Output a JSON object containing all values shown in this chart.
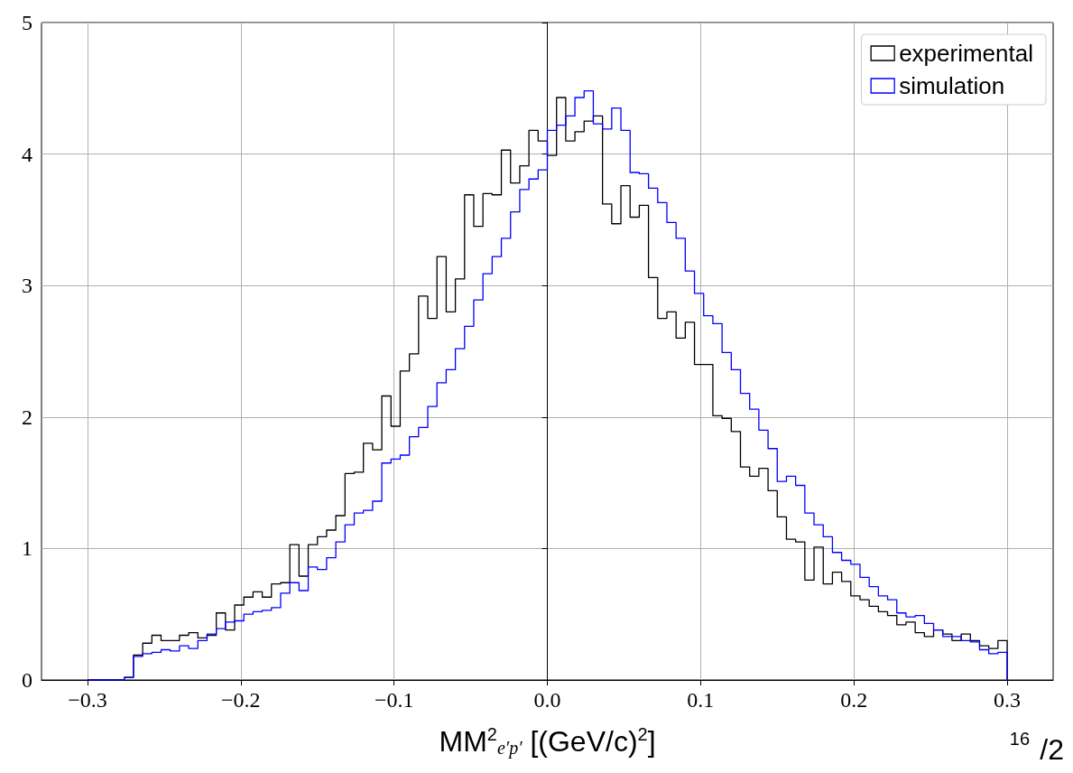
{
  "chart_data": {
    "type": "histogram",
    "xlabel": "MM$^{2}$$_{e′p′}$ [(GeV/c)$^{2}$]",
    "bins": [
      -0.3,
      -0.294,
      -0.288,
      -0.282,
      -0.276,
      -0.27,
      -0.264,
      -0.258,
      -0.252,
      -0.246,
      -0.24,
      -0.234,
      -0.228,
      -0.222,
      -0.216,
      -0.21,
      -0.204,
      -0.198,
      -0.192,
      -0.186,
      -0.18,
      -0.174,
      -0.168,
      -0.162,
      -0.156,
      -0.15,
      -0.144,
      -0.138,
      -0.132,
      -0.126,
      -0.12,
      -0.114,
      -0.108,
      -0.102,
      -0.096,
      -0.09,
      -0.084,
      -0.078,
      -0.072,
      -0.066,
      -0.06,
      -0.054,
      -0.048,
      -0.042,
      -0.036,
      -0.03,
      -0.024,
      -0.018,
      -0.012,
      -0.006,
      0,
      0.006,
      0.012,
      0.018,
      0.024,
      0.03,
      0.036,
      0.042,
      0.048,
      0.054,
      0.06,
      0.066,
      0.072,
      0.078,
      0.084,
      0.09,
      0.096,
      0.102,
      0.108,
      0.114,
      0.12,
      0.126,
      0.132,
      0.138,
      0.144,
      0.15,
      0.156,
      0.162,
      0.168,
      0.174,
      0.18,
      0.186,
      0.192,
      0.198,
      0.204,
      0.21,
      0.216,
      0.222,
      0.228,
      0.234,
      0.24,
      0.246,
      0.252,
      0.258,
      0.264,
      0.27,
      0.276,
      0.282,
      0.288,
      0.294,
      0.3
    ],
    "series": [
      {
        "name": "experimental",
        "color": "#000000",
        "values": [
          0,
          0,
          0,
          0,
          0.02,
          0.19,
          0.28,
          0.34,
          0.3,
          0.3,
          0.34,
          0.36,
          0.32,
          0.34,
          0.51,
          0.38,
          0.57,
          0.63,
          0.67,
          0.63,
          0.73,
          0.74,
          1.03,
          0.79,
          1.03,
          1.09,
          1.14,
          1.25,
          1.57,
          1.58,
          1.8,
          1.75,
          2.16,
          1.93,
          2.35,
          2.48,
          2.92,
          2.75,
          3.22,
          2.8,
          3.05,
          3.69,
          3.45,
          3.7,
          3.69,
          4.03,
          3.78,
          3.91,
          4.18,
          4.1,
          3.99,
          4.43,
          4.1,
          4.17,
          4.25,
          4.29,
          3.62,
          3.47,
          3.76,
          3.52,
          3.61,
          3.06,
          2.75,
          2.8,
          2.6,
          2.72,
          2.4,
          2.4,
          2.01,
          1.99,
          1.89,
          1.62,
          1.55,
          1.61,
          1.44,
          1.24,
          1.07,
          1.05,
          0.76,
          1.01,
          0.73,
          0.82,
          0.75,
          0.64,
          0.61,
          0.56,
          0.52,
          0.49,
          0.42,
          0.44,
          0.36,
          0.33,
          0.38,
          0.35,
          0.3,
          0.35,
          0.3,
          0.26,
          0.24,
          0.3
        ]
      },
      {
        "name": "simulation",
        "color": "#0000ff",
        "values": [
          0,
          0,
          0,
          0,
          0.02,
          0.18,
          0.2,
          0.21,
          0.23,
          0.22,
          0.26,
          0.24,
          0.3,
          0.35,
          0.39,
          0.44,
          0.45,
          0.5,
          0.52,
          0.53,
          0.55,
          0.66,
          0.74,
          0.68,
          0.86,
          0.84,
          0.93,
          1.05,
          1.18,
          1.27,
          1.29,
          1.36,
          1.65,
          1.68,
          1.71,
          1.85,
          1.92,
          2.08,
          2.26,
          2.36,
          2.52,
          2.69,
          2.89,
          3.09,
          3.22,
          3.36,
          3.56,
          3.73,
          3.81,
          3.88,
          4.18,
          4.22,
          4.29,
          4.43,
          4.48,
          4.23,
          4.19,
          4.35,
          4.18,
          3.86,
          3.85,
          3.74,
          3.63,
          3.48,
          3.36,
          3.11,
          2.94,
          2.77,
          2.71,
          2.49,
          2.36,
          2.18,
          2.06,
          1.9,
          1.76,
          1.51,
          1.55,
          1.48,
          1.27,
          1.18,
          1.09,
          0.97,
          0.91,
          0.88,
          0.78,
          0.71,
          0.64,
          0.61,
          0.51,
          0.48,
          0.49,
          0.43,
          0.38,
          0.33,
          0.33,
          0.3,
          0.29,
          0.23,
          0.2,
          0.21
        ]
      }
    ],
    "xlim": [
      -0.33,
      0.33
    ],
    "xticks": [
      {
        "value": -0.3,
        "label": "−0.3"
      },
      {
        "value": -0.2,
        "label": "−0.2"
      },
      {
        "value": -0.1,
        "label": "−0.1"
      },
      {
        "value": 0,
        "label": "0.0"
      },
      {
        "value": 0.1,
        "label": "0.1"
      },
      {
        "value": 0.2,
        "label": "0.2"
      },
      {
        "value": 0.3,
        "label": "0.3"
      }
    ],
    "ylim": [
      0,
      5
    ],
    "yticks": [
      0,
      1,
      2,
      3,
      4,
      5
    ],
    "grid": true,
    "legend": "top right",
    "annotations": [
      "16",
      "/2"
    ]
  }
}
